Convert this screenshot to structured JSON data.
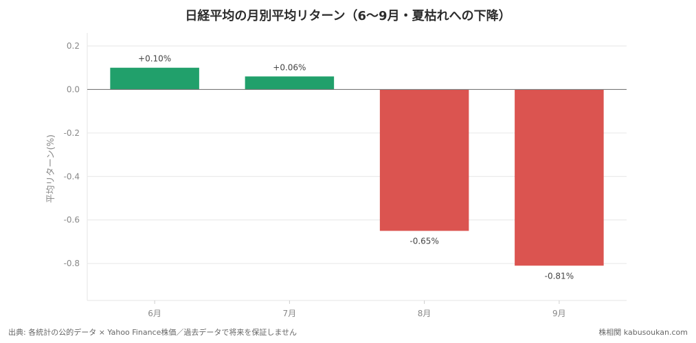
{
  "chart_data": {
    "type": "bar",
    "title": "日経平均の月別平均リターン（6〜9月・夏枯れへの下降）",
    "ylabel": "平均リターン(%)",
    "xlabel": "",
    "categories": [
      "6月",
      "7月",
      "8月",
      "9月"
    ],
    "values": [
      0.1,
      0.06,
      -0.65,
      -0.81
    ],
    "data_labels": [
      "+0.10%",
      "+0.06%",
      "-0.65%",
      "-0.81%"
    ],
    "ylim": [
      -0.97,
      0.26
    ],
    "yticks": [
      0.2,
      0.0,
      -0.2,
      -0.4,
      -0.6,
      -0.8
    ],
    "ytick_labels": [
      "0.2",
      "0.0",
      "-0.2",
      "-0.4",
      "-0.6",
      "-0.8"
    ],
    "grid": true,
    "colors": {
      "positive": "#21a06b",
      "negative": "#db5450"
    }
  },
  "footer": {
    "source": "出典: 各統計の公的データ × Yahoo Finance株価／過去データで将来を保証しません",
    "brand": "株相関 kabusoukan.com"
  }
}
